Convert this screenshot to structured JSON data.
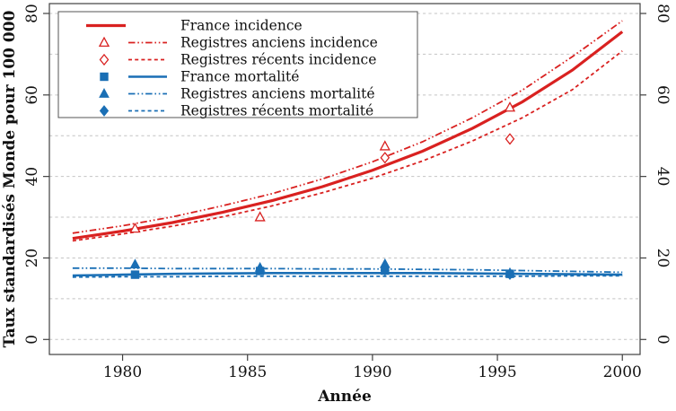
{
  "chart_data": {
    "type": "line",
    "title": "",
    "xlabel": "Année",
    "ylabel": "Taux standardisés Monde pour 100 000",
    "xlim": [
      1977.07,
      2000.71
    ],
    "ylim": [
      -3.68,
      82.42
    ],
    "x_ticks": [
      1980,
      1985,
      1990,
      1995,
      2000
    ],
    "y_ticks": [
      0,
      20,
      40,
      60,
      80
    ],
    "y_gridlines": [
      0,
      10,
      20,
      30,
      40,
      50,
      60,
      70,
      80
    ],
    "grid": true,
    "legend_position": "top-left",
    "colors": {
      "incidence": "#d92120",
      "mortality": "#1a6fb5",
      "grid": "#c4c4c4",
      "axis": "#404040",
      "text": "#111111",
      "legend_border": "#555555",
      "background": "#ffffff"
    },
    "x": [
      1978,
      1980,
      1982,
      1984,
      1986,
      1988,
      1990,
      1992,
      1994,
      1996,
      1998,
      2000
    ],
    "series": [
      {
        "label": "France incidence",
        "group": "incidence",
        "line": "solid",
        "line_width": 3.2,
        "marker": null,
        "values": [
          24.8,
          26.6,
          28.7,
          31.2,
          34.1,
          37.5,
          41.5,
          46.2,
          51.8,
          58.3,
          66.1,
          75.5
        ]
      },
      {
        "label": "Registres anciens incidence",
        "group": "incidence",
        "line": "dashdotdot",
        "line_width": 1.8,
        "marker": "triangle-open",
        "values": [
          26.1,
          27.9,
          30.1,
          32.8,
          35.8,
          39.4,
          43.6,
          48.5,
          54.4,
          61.2,
          69.4,
          78.2
        ],
        "points": {
          "x": [
            1980.5,
            1985.5,
            1990.5,
            1995.5
          ],
          "y": [
            27.2,
            30.0,
            47.4,
            56.9
          ]
        }
      },
      {
        "label": "Registres récents  incidence",
        "group": "incidence",
        "line": "dashed",
        "line_width": 1.8,
        "marker": "diamond-open",
        "values": [
          24.2,
          25.9,
          27.8,
          30.1,
          32.8,
          36.0,
          39.6,
          43.8,
          48.7,
          54.4,
          61.3,
          70.8
        ],
        "points": {
          "x": [
            1990.5,
            1995.5
          ],
          "y": [
            44.6,
            49.2
          ]
        }
      },
      {
        "label": "France mortalité",
        "group": "mortality",
        "line": "solid",
        "line_width": 2.6,
        "marker": "square-filled",
        "values": [
          15.7,
          15.9,
          16.1,
          16.2,
          16.3,
          16.3,
          16.3,
          16.3,
          16.2,
          16.1,
          16.0,
          15.9
        ],
        "points": {
          "x": [
            1980.5,
            1985.5,
            1990.5,
            1995.5
          ],
          "y": [
            15.9,
            16.8,
            16.9,
            16.1
          ]
        }
      },
      {
        "label": "Registres anciens mortalité",
        "group": "mortality",
        "line": "dashdotdot",
        "line_width": 1.8,
        "marker": "triangle-filled",
        "values": [
          17.5,
          17.5,
          17.4,
          17.4,
          17.4,
          17.3,
          17.3,
          17.2,
          17.1,
          16.9,
          16.7,
          16.5
        ],
        "points": {
          "x": [
            1980.5,
            1985.5,
            1990.5,
            1995.5
          ],
          "y": [
            18.4,
            17.6,
            18.5,
            16.3
          ]
        }
      },
      {
        "label": "Registres récents  mortalité",
        "group": "mortality",
        "line": "dashed",
        "line_width": 1.8,
        "marker": "diamond-filled",
        "values": [
          15.3,
          15.4,
          15.4,
          15.5,
          15.5,
          15.5,
          15.5,
          15.5,
          15.5,
          15.5,
          15.6,
          15.6
        ],
        "points": {
          "x": [
            1990.5,
            1995.5
          ],
          "y": [
            17.0,
            16.0
          ]
        }
      }
    ]
  }
}
